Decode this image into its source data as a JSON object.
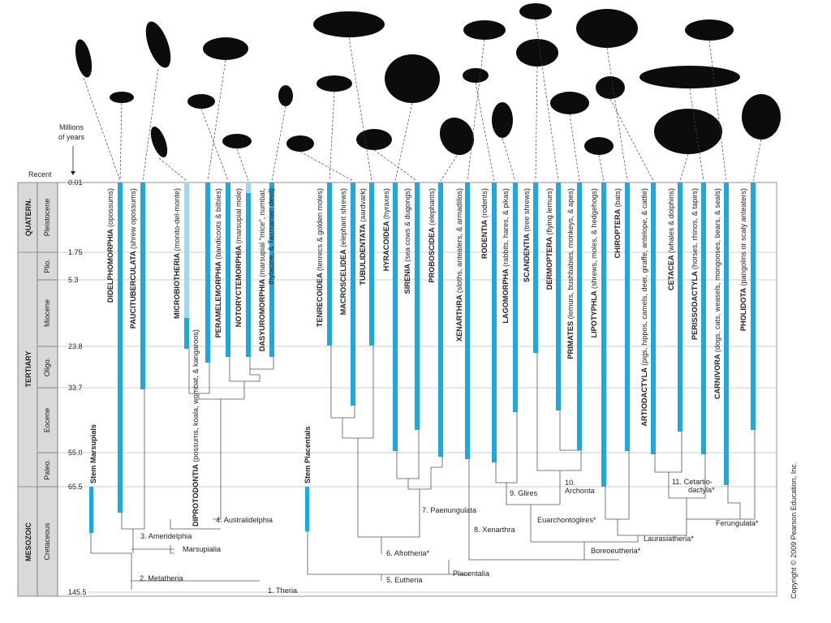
{
  "axis": {
    "title_line1": "Millions",
    "title_line2": "of years",
    "recent_label": "Recent",
    "ticks": [
      "0.01",
      "1.75",
      "5.3",
      "23.8",
      "33.7",
      "55.0",
      "65.5",
      "145.5"
    ]
  },
  "eras": {
    "quaternary": "QUATERN.",
    "tertiary": "TERTIARY",
    "mesozoic": "MESOZOIC"
  },
  "epochs": [
    "Pleistocene",
    "Plio.",
    "Miocene",
    "Oligo.",
    "Eocene",
    "Paleo.",
    "Cretaceous"
  ],
  "stems": {
    "marsupials": "Stem Marsupials",
    "placentals": "Stem Placentals"
  },
  "taxa": [
    {
      "name": "DIDELPHOMORPHIA",
      "common": "(opossums)"
    },
    {
      "name": "PAUCITUBERCULATA",
      "common": "(shrew opossums)"
    },
    {
      "name": "MICROBIOTHERIA",
      "common": "(monito-del-monte)"
    },
    {
      "name": "DIPROTODONTIA",
      "common": "(possums, koala, wombat, & kangaroos)"
    },
    {
      "name": "PERAMELEMORPHIA",
      "common": "(bandicoots & bilbies)"
    },
    {
      "name": "NOTORYCTEMORPHIA",
      "common": "(marsupial mole)"
    },
    {
      "name": "DASYUROMORPHIA",
      "common": "(marsupial \"mice\", numbat,"
    },
    {
      "name": "TENRECOIDEA",
      "common": "(tenrecs & golden moles)"
    },
    {
      "name": "MACROSCELIDEA",
      "common": "(elephant shrews)"
    },
    {
      "name": "TUBULIDENTATA",
      "common": "(aardvark)"
    },
    {
      "name": "HYRACOIDEA",
      "common": "(hyraxes)"
    },
    {
      "name": "SIRENIA",
      "common": "(sea cows & dugongs)"
    },
    {
      "name": "PROBOSCIDEA",
      "common": "(elephants)"
    },
    {
      "name": "XENARTHRA",
      "common": "(sloths, anteaters, & armadillos)"
    },
    {
      "name": "RODENTIA",
      "common": "(rodents)"
    },
    {
      "name": "LAGOMORPHA",
      "common": "(rabbits, hares, & pikas)"
    },
    {
      "name": "SCANDENTIA",
      "common": "(tree shrews)"
    },
    {
      "name": "DERMOPTERA",
      "common": "(flying lemurs)"
    },
    {
      "name": "PRIMATES",
      "common": "(lemurs, bushbabies, monkeys, & apes)"
    },
    {
      "name": "LIPOTYPHLA",
      "common": "(shrews, moles, & hedgehogs)"
    },
    {
      "name": "CHIROPTERA",
      "common": "(bats)"
    },
    {
      "name": "ARTIODACTYLA",
      "common": "(pigs, hippos, camels, deer, giraffe, antelope, & cattle)"
    },
    {
      "name": "CETACEA",
      "common": "(whales & dolphins)"
    },
    {
      "name": "PERISSODACTYLA",
      "common": "(horses, rhinos, & tapirs)"
    },
    {
      "name": "CARNIVORA",
      "common": "(dogs, cats, weasels, mongooses, bears, & seals)"
    },
    {
      "name": "PHOLIDOTA",
      "common": "(pangolins or scaly anteaters)"
    }
  ],
  "dasyuro_line2": "thylacine, & Tasmanian devil)",
  "nodes": {
    "theria": "1. Theria",
    "metatheria": "2. Metatheria",
    "ameridelphia": "3. Ameridelphia",
    "australidelphia": "4. Australidelphia",
    "marsupialia": "Marsupialia",
    "eutheria": "5. Eutheria",
    "placentalia": "Placentalia",
    "afrotheria": "6. Afrotheria*",
    "paenungulata": "7. Paenungulata",
    "xenarthra": "8. Xenarthra",
    "glires": "9. Glires",
    "archonta_num": "10.",
    "archonta": "Archonta",
    "euarchontoglires": "Euarchontoglires*",
    "boreoeutheria": "Boreoeutheria*",
    "laurasiatheria": "Laurasiatheria*",
    "cetartio_1": "11. Cetartio-",
    "cetartio_2": "dactyla*",
    "ferungulata": "Ferungulata*"
  },
  "copyright": "Copyright © 2009 Pearson Education, Inc.",
  "colors": {
    "bar": "#1fa8dc",
    "bar_light": "#9fd8ef",
    "era_band": "#d9d9d9",
    "grid": "#999999"
  }
}
